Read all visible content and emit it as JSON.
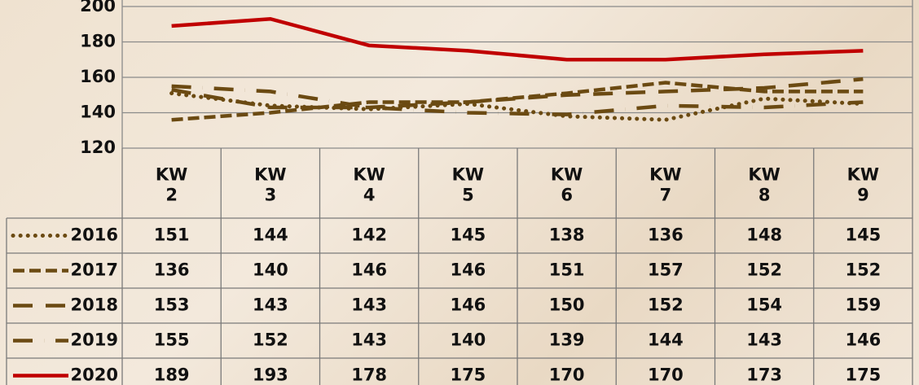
{
  "chart_data": {
    "type": "line",
    "categories": [
      "KW\n2",
      "KW\n3",
      "KW\n4",
      "KW\n5",
      "KW\n6",
      "KW\n7",
      "KW\n8",
      "KW\n9"
    ],
    "series": [
      {
        "name": "2016",
        "color": "#6b4a12",
        "dash": "dot",
        "values": [
          151,
          144,
          142,
          145,
          138,
          136,
          148,
          145
        ]
      },
      {
        "name": "2017",
        "color": "#6b4a12",
        "dash": "dash",
        "values": [
          136,
          140,
          146,
          146,
          151,
          157,
          152,
          152
        ]
      },
      {
        "name": "2018",
        "color": "#6b4a12",
        "dash": "longdash",
        "values": [
          153,
          143,
          143,
          146,
          150,
          152,
          154,
          159
        ]
      },
      {
        "name": "2019",
        "color": "#6b4a12",
        "dash": "longdashdot",
        "values": [
          155,
          152,
          143,
          140,
          139,
          144,
          143,
          146
        ]
      },
      {
        "name": "2020",
        "color": "#c00000",
        "dash": "solid",
        "values": [
          189,
          193,
          178,
          175,
          170,
          170,
          173,
          175
        ]
      }
    ],
    "ylim": [
      120,
      200
    ],
    "yticks": [
      120,
      140,
      160,
      180,
      200
    ],
    "grid": true,
    "data_table": true
  }
}
